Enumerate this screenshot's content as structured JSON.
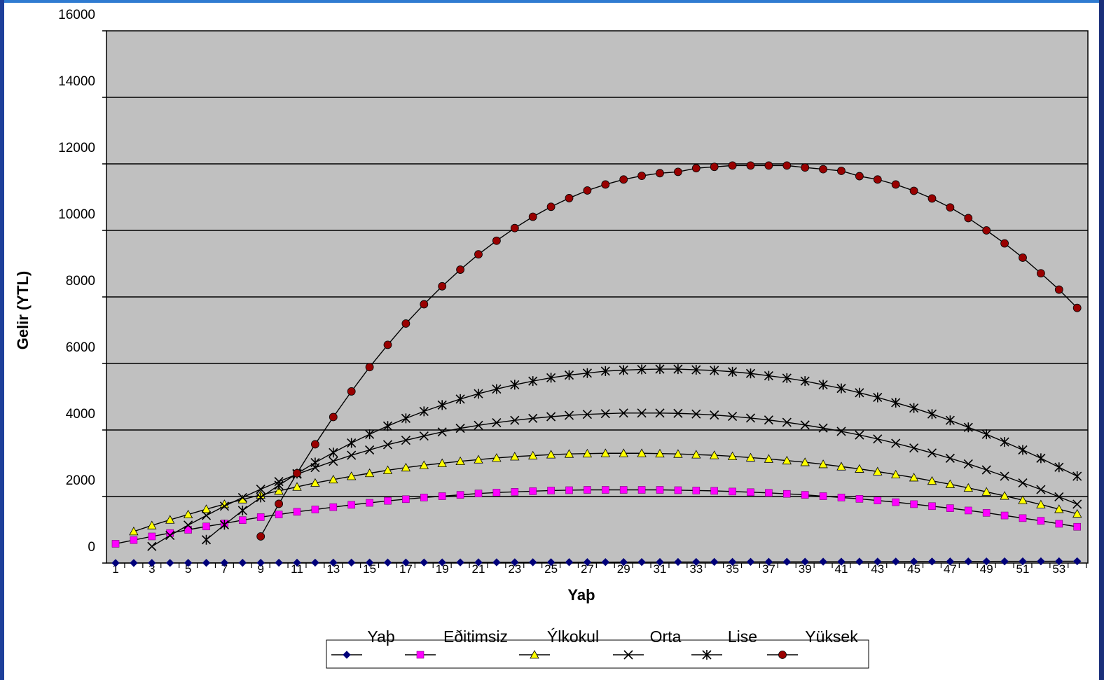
{
  "colors": {
    "plot_background": "#c0c0c0",
    "frame_left": "#1e3f9a",
    "frame_top": "#2f7bd1",
    "frame_right": "#1a2f7a",
    "gridline": "#000000"
  },
  "chart_data": {
    "type": "line",
    "xlabel": "Yaþ",
    "ylabel": "Gelir (YTL)",
    "ylim": [
      0,
      16000
    ],
    "yticks": [
      0,
      2000,
      4000,
      6000,
      8000,
      10000,
      12000,
      14000,
      16000
    ],
    "xticks": [
      "1",
      "3",
      "5",
      "7",
      "9",
      "11",
      "13",
      "15",
      "17",
      "19",
      "21",
      "23",
      "25",
      "27",
      "29",
      "31",
      "33",
      "35",
      "37",
      "39",
      "41",
      "43",
      "45",
      "47",
      "49",
      "51",
      "53"
    ],
    "grid": "horizontal",
    "legend_position": "bottom",
    "series": [
      {
        "name": "Yaþ",
        "marker": "diamond",
        "color": "#00007a",
        "x": [
          1,
          2,
          3,
          4,
          5,
          6,
          7,
          8,
          9,
          10,
          11,
          12,
          13,
          14,
          15,
          16,
          17,
          18,
          19,
          20,
          21,
          22,
          23,
          24,
          25,
          26,
          27,
          28,
          29,
          30,
          31,
          32,
          33,
          34,
          35,
          36,
          37,
          38,
          39,
          40,
          41,
          42,
          43,
          44,
          45,
          46,
          47,
          48,
          49,
          50,
          51,
          52,
          53,
          54
        ],
        "values": [
          1,
          2,
          3,
          4,
          5,
          6,
          7,
          8,
          9,
          10,
          11,
          12,
          13,
          14,
          15,
          16,
          17,
          18,
          19,
          20,
          21,
          22,
          23,
          24,
          25,
          26,
          27,
          28,
          29,
          30,
          31,
          32,
          33,
          34,
          35,
          36,
          37,
          38,
          39,
          40,
          41,
          42,
          43,
          44,
          45,
          46,
          47,
          48,
          49,
          50,
          51,
          52,
          53,
          54
        ]
      },
      {
        "name": "Eðitimsiz",
        "marker": "square",
        "color": "#ff00ff",
        "x": [
          1,
          2,
          3,
          4,
          5,
          6,
          7,
          8,
          9,
          10,
          11,
          12,
          13,
          14,
          15,
          16,
          17,
          18,
          19,
          20,
          21,
          22,
          23,
          24,
          25,
          26,
          27,
          28,
          29,
          30,
          31,
          32,
          33,
          34,
          35,
          36,
          37,
          38,
          39,
          40,
          41,
          42,
          43,
          44,
          45,
          46,
          47,
          48,
          49,
          50,
          51,
          52,
          53,
          54
        ],
        "values": [
          580,
          690,
          800,
          900,
          1000,
          1100,
          1190,
          1290,
          1380,
          1460,
          1540,
          1610,
          1680,
          1750,
          1810,
          1870,
          1920,
          1970,
          2010,
          2050,
          2090,
          2120,
          2140,
          2160,
          2180,
          2190,
          2200,
          2200,
          2200,
          2200,
          2200,
          2190,
          2180,
          2170,
          2150,
          2130,
          2110,
          2080,
          2050,
          2010,
          1970,
          1930,
          1880,
          1830,
          1770,
          1710,
          1650,
          1580,
          1510,
          1430,
          1350,
          1270,
          1180,
          1090
        ]
      },
      {
        "name": "Ýlkokul",
        "marker": "triangle",
        "color": "#ffff00",
        "x": [
          2,
          3,
          4,
          5,
          6,
          7,
          8,
          9,
          10,
          11,
          12,
          13,
          14,
          15,
          16,
          17,
          18,
          19,
          20,
          21,
          22,
          23,
          24,
          25,
          26,
          27,
          28,
          29,
          30,
          31,
          32,
          33,
          34,
          35,
          36,
          37,
          38,
          39,
          40,
          41,
          42,
          43,
          44,
          45,
          46,
          47,
          48,
          49,
          50,
          51,
          52,
          53,
          54
        ],
        "values": [
          950,
          1130,
          1300,
          1460,
          1620,
          1770,
          1910,
          2050,
          2170,
          2290,
          2410,
          2510,
          2610,
          2700,
          2790,
          2870,
          2940,
          3000,
          3060,
          3110,
          3160,
          3200,
          3230,
          3260,
          3280,
          3290,
          3300,
          3300,
          3300,
          3290,
          3280,
          3260,
          3240,
          3210,
          3170,
          3130,
          3080,
          3030,
          2970,
          2900,
          2830,
          2750,
          2660,
          2570,
          2470,
          2370,
          2260,
          2140,
          2020,
          1890,
          1760,
          1620,
          1480
        ]
      },
      {
        "name": "Orta",
        "marker": "x",
        "color": "#000000",
        "x": [
          3,
          4,
          5,
          6,
          7,
          8,
          9,
          10,
          11,
          12,
          13,
          14,
          15,
          16,
          17,
          18,
          19,
          20,
          21,
          22,
          23,
          24,
          25,
          26,
          27,
          28,
          29,
          30,
          31,
          32,
          33,
          34,
          35,
          36,
          37,
          38,
          39,
          40,
          41,
          42,
          43,
          44,
          45,
          46,
          47,
          48,
          49,
          50,
          51,
          52,
          53,
          54
        ],
        "values": [
          500,
          830,
          1140,
          1430,
          1710,
          1970,
          2220,
          2450,
          2670,
          2870,
          3060,
          3240,
          3400,
          3560,
          3690,
          3820,
          3940,
          4050,
          4140,
          4220,
          4290,
          4350,
          4400,
          4440,
          4470,
          4490,
          4510,
          4510,
          4510,
          4500,
          4480,
          4450,
          4410,
          4360,
          4300,
          4230,
          4150,
          4060,
          3960,
          3850,
          3730,
          3600,
          3460,
          3310,
          3150,
          2980,
          2800,
          2610,
          2410,
          2210,
          1990,
          1770
        ]
      },
      {
        "name": "Lise",
        "marker": "star",
        "color": "#000000",
        "x": [
          6,
          7,
          8,
          9,
          10,
          11,
          12,
          13,
          14,
          15,
          16,
          17,
          18,
          19,
          20,
          21,
          22,
          23,
          24,
          25,
          26,
          27,
          28,
          29,
          30,
          31,
          32,
          33,
          34,
          35,
          36,
          37,
          38,
          39,
          40,
          41,
          42,
          43,
          44,
          45,
          46,
          47,
          48,
          49,
          50,
          51,
          52,
          53,
          54
        ],
        "values": [
          700,
          1150,
          1580,
          1970,
          2340,
          2690,
          3020,
          3320,
          3610,
          3870,
          4120,
          4350,
          4560,
          4750,
          4930,
          5090,
          5230,
          5360,
          5470,
          5570,
          5650,
          5710,
          5770,
          5800,
          5820,
          5830,
          5830,
          5810,
          5790,
          5750,
          5700,
          5630,
          5560,
          5470,
          5360,
          5250,
          5120,
          4980,
          4820,
          4660,
          4480,
          4290,
          4080,
          3870,
          3640,
          3400,
          3150,
          2880,
          2610
        ]
      },
      {
        "name": "Yüksek",
        "marker": "circle",
        "color": "#990000",
        "x": [
          9,
          10,
          11,
          12,
          13,
          14,
          15,
          16,
          17,
          18,
          19,
          20,
          21,
          22,
          23,
          24,
          25,
          26,
          27,
          28,
          29,
          30,
          31,
          32,
          33,
          34,
          35,
          36,
          37,
          38,
          39,
          40,
          41,
          42,
          43,
          44,
          45,
          46,
          47,
          48,
          49,
          50,
          51,
          52,
          53,
          54
        ],
        "values": [
          800,
          1780,
          2700,
          3570,
          4390,
          5160,
          5890,
          6560,
          7200,
          7780,
          8320,
          8820,
          9280,
          9690,
          10070,
          10410,
          10710,
          10970,
          11200,
          11380,
          11530,
          11640,
          11720,
          11760,
          11870,
          11910,
          11950,
          11950,
          11950,
          11950,
          11890,
          11840,
          11790,
          11630,
          11530,
          11380,
          11190,
          10960,
          10690,
          10370,
          10000,
          9610,
          9180,
          8710,
          8220,
          7670
        ]
      }
    ]
  }
}
